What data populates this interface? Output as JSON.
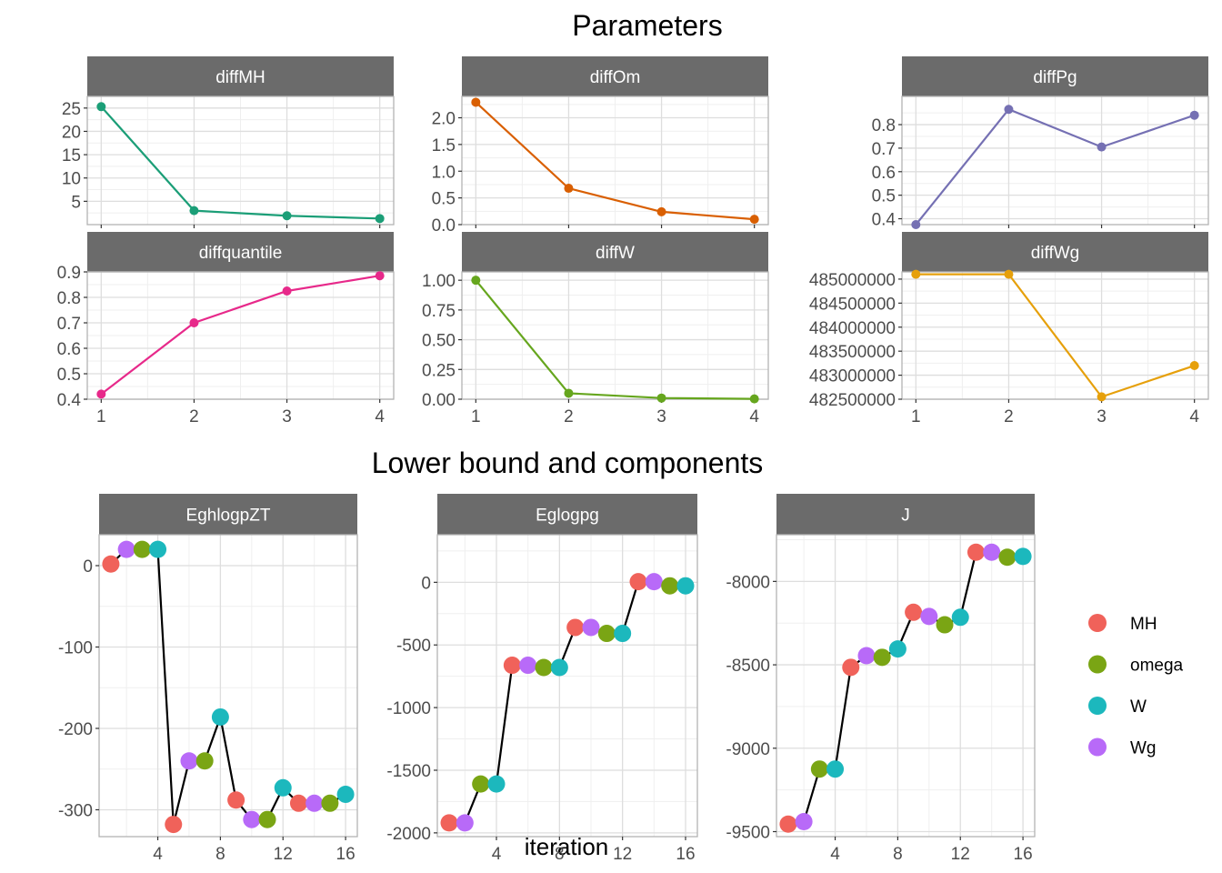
{
  "titles": {
    "parameters": "Parameters",
    "lower_bound": "Lower bound and components",
    "x_axis": "iteration"
  },
  "colors": {
    "strip": "#6b6b6b",
    "grid_major": "#dedede",
    "grid_minor": "#efefef",
    "panel_border": "#b3b3b3",
    "MH": "#f0625a",
    "omega": "#7aa514",
    "W": "#1cb8bd",
    "Wg": "#b86af8",
    "bound_line": "#000000"
  },
  "legend": [
    {
      "label": "MH",
      "key": "MH"
    },
    {
      "label": "omega",
      "key": "omega"
    },
    {
      "label": "W",
      "key": "W"
    },
    {
      "label": "Wg",
      "key": "Wg"
    }
  ],
  "chart_data": [
    {
      "type": "line",
      "panel": "diffMH",
      "x": [
        1,
        2,
        3,
        4
      ],
      "values": [
        25.3,
        3.0,
        1.9,
        1.3
      ],
      "color": "#1b9e77",
      "ylim": [
        0,
        27.5
      ],
      "yticks": [
        5,
        10,
        15,
        20,
        25
      ],
      "ytick_labels": [
        "5",
        "10",
        "15",
        "20",
        "25"
      ],
      "xticks": [
        1,
        2,
        3,
        4
      ]
    },
    {
      "type": "line",
      "panel": "diffOm",
      "x": [
        1,
        2,
        3,
        4
      ],
      "values": [
        2.29,
        0.68,
        0.24,
        0.1
      ],
      "color": "#d95f02",
      "ylim": [
        0,
        2.4
      ],
      "yticks": [
        0,
        0.5,
        1,
        1.5,
        2
      ],
      "ytick_labels": [
        "0.0",
        "0.5",
        "1.0",
        "1.5",
        "2.0"
      ],
      "xticks": [
        1,
        2,
        3,
        4
      ]
    },
    {
      "type": "line",
      "panel": "diffPg",
      "x": [
        1,
        2,
        3,
        4
      ],
      "values": [
        0.375,
        0.865,
        0.705,
        0.84
      ],
      "color": "#7570b3",
      "ylim": [
        0.375,
        0.92
      ],
      "yticks": [
        0.4,
        0.5,
        0.6,
        0.7,
        0.8
      ],
      "ytick_labels": [
        "0.4",
        "0.5",
        "0.6",
        "0.7",
        "0.8"
      ],
      "xticks": [
        1,
        2,
        3,
        4
      ]
    },
    {
      "type": "line",
      "panel": "diffquantile",
      "x": [
        1,
        2,
        3,
        4
      ],
      "values": [
        0.42,
        0.7,
        0.825,
        0.885
      ],
      "color": "#e7298a",
      "ylim": [
        0.4,
        0.9
      ],
      "yticks": [
        0.4,
        0.5,
        0.6,
        0.7,
        0.8,
        0.9
      ],
      "ytick_labels": [
        "0.4",
        "0.5",
        "0.6",
        "0.7",
        "0.8",
        "0.9"
      ],
      "xticks": [
        1,
        2,
        3,
        4
      ]
    },
    {
      "type": "line",
      "panel": "diffW",
      "x": [
        1,
        2,
        3,
        4
      ],
      "values": [
        1.0,
        0.05,
        0.01,
        0.003
      ],
      "color": "#66a61e",
      "ylim": [
        0,
        1.07
      ],
      "yticks": [
        0,
        0.25,
        0.5,
        0.75,
        1
      ],
      "ytick_labels": [
        "0.00",
        "0.25",
        "0.50",
        "0.75",
        "1.00"
      ],
      "xticks": [
        1,
        2,
        3,
        4
      ]
    },
    {
      "type": "line",
      "panel": "diffWg",
      "x": [
        1,
        2,
        3,
        4
      ],
      "values": [
        485100000,
        485100000,
        482550000,
        483200000
      ],
      "color": "#e6a00b",
      "ylim": [
        482500000,
        485150000
      ],
      "yticks": [
        482500000,
        483000000,
        483500000,
        484000000,
        484500000,
        485000000
      ],
      "ytick_labels": [
        "482500000",
        "483000000",
        "483500000",
        "484000000",
        "484500000",
        "485000000"
      ],
      "xticks": [
        1,
        2,
        3,
        4
      ]
    },
    {
      "type": "line",
      "panel": "EghlogpZT",
      "x": [
        1,
        2,
        3,
        4,
        5,
        6,
        7,
        8,
        9,
        10,
        11,
        12,
        13,
        14,
        15,
        16
      ],
      "values": [
        2,
        20,
        20,
        20,
        -318,
        -240,
        -240,
        -186,
        -288,
        -312,
        -312,
        -273,
        -292,
        -292,
        -292,
        -281
      ],
      "groups": [
        "MH",
        "Wg",
        "omega",
        "W",
        "MH",
        "Wg",
        "omega",
        "W",
        "MH",
        "Wg",
        "omega",
        "W",
        "MH",
        "Wg",
        "omega",
        "W"
      ],
      "ylim": [
        -333,
        38
      ],
      "yticks": [
        -300,
        -200,
        -100,
        0
      ],
      "ytick_labels": [
        "-300",
        "-200",
        "-100",
        "0"
      ],
      "xticks": [
        4,
        8,
        12,
        16
      ],
      "xlim": [
        0.25,
        16.75
      ]
    },
    {
      "type": "line",
      "panel": "Eglogpg",
      "x": [
        1,
        2,
        3,
        4,
        5,
        6,
        7,
        8,
        9,
        10,
        11,
        12,
        13,
        14,
        15,
        16
      ],
      "values": [
        -1920,
        -1920,
        -1610,
        -1610,
        -662,
        -662,
        -680,
        -680,
        -360,
        -360,
        -408,
        -408,
        5,
        5,
        -28,
        -28
      ],
      "groups": [
        "MH",
        "Wg",
        "omega",
        "W",
        "MH",
        "Wg",
        "omega",
        "W",
        "MH",
        "Wg",
        "omega",
        "W",
        "MH",
        "Wg",
        "omega",
        "W"
      ],
      "ylim": [
        -2030,
        380
      ],
      "yticks": [
        -2000,
        -1500,
        -1000,
        -500,
        0
      ],
      "ytick_labels": [
        "-2000",
        "-1500",
        "-1000",
        "-500",
        "0"
      ],
      "xticks": [
        4,
        8,
        12,
        16
      ],
      "xlim": [
        0.25,
        16.75
      ]
    },
    {
      "type": "line",
      "panel": "J",
      "x": [
        1,
        2,
        3,
        4,
        5,
        6,
        7,
        8,
        9,
        10,
        11,
        12,
        13,
        14,
        15,
        16
      ],
      "values": [
        -9455,
        -9440,
        -9125,
        -9125,
        -8515,
        -8445,
        -8455,
        -8405,
        -8185,
        -8210,
        -8260,
        -8215,
        -7825,
        -7825,
        -7855,
        -7850
      ],
      "groups": [
        "MH",
        "Wg",
        "omega",
        "W",
        "MH",
        "Wg",
        "omega",
        "W",
        "MH",
        "Wg",
        "omega",
        "W",
        "MH",
        "Wg",
        "omega",
        "W"
      ],
      "ylim": [
        -9530,
        -7720
      ],
      "yticks": [
        -9500,
        -9000,
        -8500,
        -8000
      ],
      "ytick_labels": [
        "-9500",
        "-9000",
        "-8500",
        "-8000"
      ],
      "xticks": [
        4,
        8,
        12,
        16
      ],
      "xlim": [
        0.25,
        16.75
      ]
    }
  ]
}
